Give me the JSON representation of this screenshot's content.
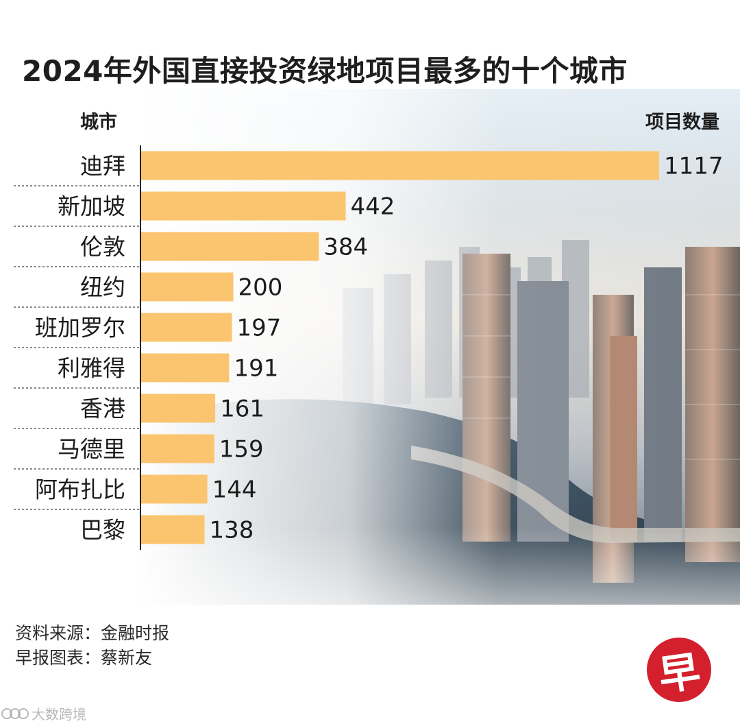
{
  "title": "2024年外国直接投资绿地项目最多的十个城市",
  "header": {
    "city_col": "城市",
    "count_col": "项目数量"
  },
  "chart_data": {
    "type": "bar",
    "orientation": "horizontal",
    "categories": [
      "迪拜",
      "新加坡",
      "伦敦",
      "纽约",
      "班加罗尔",
      "利雅得",
      "香港",
      "马德里",
      "阿布扎比",
      "巴黎"
    ],
    "values": [
      1117,
      442,
      384,
      200,
      197,
      191,
      161,
      159,
      144,
      138
    ],
    "title": "2024年外国直接投资绿地项目最多的十个城市",
    "xlabel": "项目数量",
    "ylabel": "城市",
    "bar_color": "#fbc56f",
    "data_labels": true,
    "grid": false
  },
  "footer": {
    "source": "资料来源：金融时报",
    "credit": "早报图表：蔡新友"
  },
  "logo": {
    "char": "早",
    "color": "#d3202c"
  },
  "watermark": {
    "text": "大数跨境"
  }
}
